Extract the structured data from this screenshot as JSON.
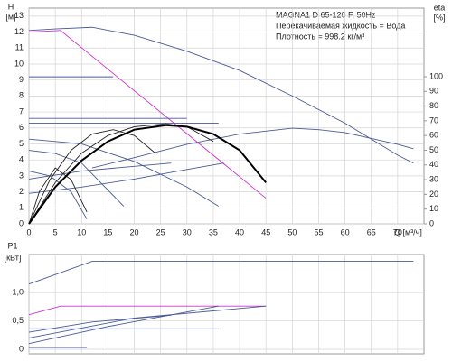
{
  "chart_data": [
    {
      "type": "line",
      "title": "MAGNA1 D 65-120 F, 50Hz",
      "annotations": [
        "Перекачиваемая жидкость = Вода",
        "Плотность = 998.2 кг/м³"
      ],
      "ylabel": "H",
      "ylabel_unit": "[м]",
      "y2label": "eta",
      "y2label_unit": "[%]",
      "xlabel": "Q [м³/ч]",
      "xlim": [
        0,
        75
      ],
      "xticks": [
        0,
        5,
        10,
        15,
        20,
        25,
        30,
        35,
        40,
        45,
        50,
        55,
        60,
        65,
        70
      ],
      "ylim": [
        0,
        13.5
      ],
      "yticks": [
        0,
        1,
        2,
        3,
        4,
        5,
        6,
        7,
        8,
        9,
        10,
        11,
        12,
        13
      ],
      "y2lim": [
        0,
        146.6
      ],
      "y2ticks": [
        0,
        10,
        20,
        30,
        40,
        50,
        60,
        70,
        80,
        90,
        100
      ],
      "grid": true,
      "show_xtick_labels": true,
      "series": [
        {
          "color": "#4a5a96",
          "x": [
            0,
            5,
            12,
            20,
            30,
            40,
            50,
            60,
            70,
            73
          ],
          "values": [
            12.1,
            12.2,
            12.3,
            11.8,
            10.8,
            9.6,
            8.0,
            6.3,
            4.3,
            3.8
          ]
        },
        {
          "color": "#4a5a96",
          "axis": "y2",
          "x": [
            12,
            20,
            30,
            40,
            50,
            55,
            60,
            70,
            73
          ],
          "values": [
            38,
            45,
            54,
            61,
            65,
            64,
            62,
            54,
            51
          ]
        },
        {
          "color": "#cc33cc",
          "x": [
            0,
            6,
            45
          ],
          "values": [
            12,
            12.1,
            1.6
          ]
        },
        {
          "color": "#4a5a96",
          "x": [
            0,
            16
          ],
          "values": [
            9.2,
            9.2
          ]
        },
        {
          "color": "#4a5a96",
          "x": [
            0,
            30
          ],
          "values": [
            6.6,
            6.6
          ]
        },
        {
          "color": "#4a5a96",
          "x": [
            0,
            36
          ],
          "values": [
            6.3,
            6.3
          ]
        },
        {
          "color": "#4a5a96",
          "x": [
            0,
            10,
            20,
            30,
            36
          ],
          "values": [
            5.3,
            5.0,
            3.9,
            2.3,
            1.1
          ]
        },
        {
          "color": "#4a5a96",
          "x": [
            0,
            10,
            20,
            30,
            37
          ],
          "values": [
            1.9,
            2.3,
            2.8,
            3.4,
            3.8
          ]
        },
        {
          "color": "#4a5a96",
          "x": [
            0,
            10,
            20,
            27
          ],
          "values": [
            2.8,
            3.3,
            3.6,
            3.8
          ]
        },
        {
          "color": "#4a5a96",
          "x": [
            0,
            4,
            8,
            11
          ],
          "values": [
            3.3,
            3.0,
            2.0,
            0.3
          ]
        },
        {
          "color": "#4a5a96",
          "x": [
            0,
            5,
            10,
            18
          ],
          "values": [
            4.6,
            4.4,
            3.8,
            1.1
          ]
        },
        {
          "color": "#222222",
          "axis": "y2",
          "x": [
            0,
            5,
            10,
            15,
            20,
            26,
            30,
            35
          ],
          "values": [
            0,
            28,
            48,
            60,
            66,
            68,
            66,
            56
          ]
        },
        {
          "color": "#222222",
          "axis": "y2",
          "x": [
            0,
            4,
            8,
            12,
            16,
            20,
            24
          ],
          "values": [
            0,
            30,
            50,
            61,
            64,
            60,
            48
          ]
        },
        {
          "color": "#222222",
          "axis": "y2",
          "x": [
            0,
            2,
            5,
            8,
            11
          ],
          "values": [
            0,
            22,
            38,
            30,
            8
          ]
        },
        {
          "color": "#000000",
          "axis": "y2",
          "width": 2,
          "x": [
            0,
            5,
            10,
            15,
            20,
            26,
            30,
            35,
            40,
            45
          ],
          "values": [
            0,
            25,
            43,
            56,
            64,
            67,
            66,
            61,
            50,
            28
          ]
        }
      ]
    },
    {
      "type": "line",
      "ylabel": "P1",
      "ylabel_unit": "[кВт]",
      "xlim": [
        0,
        75
      ],
      "xticks": [
        0,
        5,
        10,
        15,
        20,
        25,
        30,
        35,
        40,
        45,
        50,
        55,
        60,
        65,
        70
      ],
      "ylim": [
        -0.08,
        1.67
      ],
      "yticks": [
        0,
        {
          "value": 0.5,
          "label": "0,5"
        },
        {
          "value": 1,
          "label": "1,0"
        }
      ],
      "grid": true,
      "show_xtick_labels": false,
      "series": [
        {
          "color": "#4a5a96",
          "x": [
            0,
            12,
            73
          ],
          "values": [
            1.15,
            1.55,
            1.55
          ]
        },
        {
          "color": "#cc33cc",
          "x": [
            0,
            6,
            45
          ],
          "values": [
            0.61,
            0.76,
            0.76
          ]
        },
        {
          "color": "#4a5a96",
          "x": [
            0,
            20,
            45
          ],
          "values": [
            0.2,
            0.55,
            0.76
          ]
        },
        {
          "color": "#4a5a96",
          "x": [
            0,
            15,
            36
          ],
          "values": [
            0.1,
            0.4,
            0.76
          ]
        },
        {
          "color": "#4a5a96",
          "x": [
            0,
            12,
            27
          ],
          "values": [
            0.3,
            0.48,
            0.6
          ]
        },
        {
          "color": "#4a5a96",
          "x": [
            0,
            36
          ],
          "values": [
            0.36,
            0.36
          ]
        },
        {
          "color": "#4a5a96",
          "x": [
            0,
            11
          ],
          "values": [
            0.03,
            0.03
          ]
        }
      ]
    }
  ]
}
